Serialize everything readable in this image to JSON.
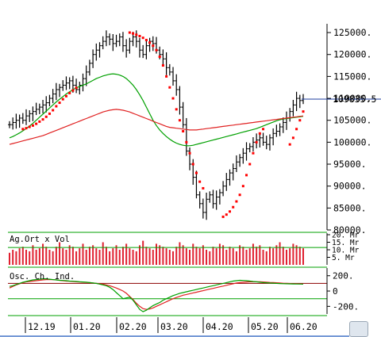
{
  "chart_data": [
    {
      "type": "candlestick",
      "panel": "price",
      "x_ticks": [
        "12.19",
        "01.20",
        "02.20",
        "03.20",
        "04.20",
        "05.20",
        "06.20"
      ],
      "y_ticks": [
        "125000.",
        "120000.",
        "115000.",
        "110000.",
        "105000.",
        "100000.",
        "95000.",
        "90000.",
        "85000.",
        "80000."
      ],
      "ylim": [
        80000,
        127000
      ],
      "last_value_label": "109835.5",
      "last_value": 109835.5,
      "colors": {
        "bars": "#000000",
        "sar": "#ff0000",
        "ma_short": "#00a000",
        "ma_long": "#e02020",
        "last_line": "#1f3f9f"
      },
      "series": [
        {
          "key": "close",
          "style": "bars",
          "values": [
            104000,
            104500,
            105000,
            105500,
            105000,
            106000,
            106500,
            107000,
            107500,
            108000,
            108500,
            109000,
            110000,
            111000,
            112000,
            112500,
            113000,
            113500,
            114000,
            113000,
            112000,
            113000,
            114500,
            116000,
            118000,
            120000,
            121000,
            122000,
            123000,
            124000,
            123500,
            122500,
            123000,
            124000,
            122000,
            121000,
            123000,
            124000,
            123000,
            121000,
            120000,
            122000,
            123000,
            122500,
            121000,
            120000,
            119000,
            117000,
            116000,
            114000,
            112000,
            108000,
            104000,
            98000,
            95000,
            92000,
            88000,
            86000,
            84000,
            87000,
            88000,
            86000,
            87500,
            88500,
            90000,
            91500,
            93000,
            94000,
            95500,
            96500,
            97500,
            98500,
            99000,
            100000,
            100500,
            101000,
            100000,
            99500,
            101000,
            102000,
            102500,
            103500,
            104500,
            105500,
            107000,
            108500,
            110000,
            109500,
            109835.5
          ]
        },
        {
          "key": "sar",
          "style": "dots",
          "values": [
            null,
            null,
            null,
            null,
            103000,
            103200,
            103500,
            103800,
            104200,
            104700,
            105200,
            105800,
            106500,
            107300,
            108200,
            109000,
            109800,
            110500,
            111200,
            111800,
            112400,
            null,
            null,
            null,
            null,
            null,
            null,
            null,
            null,
            null,
            null,
            null,
            null,
            null,
            null,
            null,
            125000,
            124800,
            124500,
            124200,
            123800,
            123300,
            122700,
            122000,
            121000,
            119500,
            117500,
            115000,
            112500,
            110000,
            107500,
            105000,
            102500,
            100000,
            97500,
            95000,
            93000,
            91000,
            89500,
            null,
            null,
            null,
            null,
            null,
            83000,
            83500,
            84200,
            85200,
            86500,
            88000,
            90000,
            92500,
            95000,
            97500,
            100000,
            102000,
            103000,
            null,
            null,
            null,
            null,
            null,
            null,
            null,
            99500,
            101000,
            103000,
            105000,
            107000
          ]
        },
        {
          "key": "ma_short",
          "style": "line",
          "values": [
            101000,
            101300,
            101700,
            102100,
            102600,
            103100,
            103700,
            104300,
            105000,
            105700,
            106400,
            107100,
            107800,
            108500,
            109200,
            109800,
            110400,
            111000,
            111500,
            112000,
            112400,
            112700,
            113000,
            113300,
            113700,
            114100,
            114500,
            114800,
            115100,
            115300,
            115500,
            115600,
            115500,
            115300,
            115000,
            114500,
            113800,
            113000,
            112000,
            110800,
            109500,
            108000,
            106500,
            105000,
            103800,
            102800,
            102000,
            101300,
            100700,
            100200,
            99800,
            99500,
            99300,
            99200,
            99200,
            99300,
            99500,
            99700,
            99900,
            100100,
            100300,
            100500,
            100700,
            100900,
            101100,
            101300,
            101500,
            101700,
            101900,
            102100,
            102300,
            102500,
            102700,
            102900,
            103100,
            103400,
            103700,
            104000,
            104300,
            104600,
            104900,
            105100,
            105300,
            105400,
            105500,
            105600,
            105700,
            105800,
            105900
          ]
        },
        {
          "key": "ma_long",
          "style": "line",
          "values": [
            99500,
            99700,
            99900,
            100100,
            100300,
            100500,
            100700,
            100900,
            101100,
            101300,
            101500,
            101800,
            102100,
            102400,
            102700,
            103000,
            103300,
            103600,
            103900,
            104200,
            104500,
            104800,
            105100,
            105400,
            105700,
            106000,
            106300,
            106600,
            106900,
            107100,
            107300,
            107400,
            107500,
            107400,
            107300,
            107100,
            106900,
            106600,
            106300,
            106000,
            105700,
            105400,
            105100,
            104800,
            104500,
            104200,
            103900,
            103600,
            103400,
            103300,
            103200,
            103100,
            103000,
            102900,
            102800,
            102800,
            102800,
            102900,
            103000,
            103100,
            103200,
            103300,
            103400,
            103500,
            103600,
            103700,
            103800,
            103900,
            104000,
            104100,
            104200,
            104300,
            104400,
            104500,
            104600,
            104700,
            104800,
            104900,
            105000,
            105100,
            105200,
            105300,
            105400,
            105500,
            105600,
            105700,
            105800,
            105900,
            106000
          ]
        }
      ]
    },
    {
      "type": "bar",
      "panel": "volume",
      "title": "Ag.Ort x Vol",
      "y_ticks": [
        "20. Mr",
        "15. Mr",
        "10. Mr",
        "5. Mr"
      ],
      "ylim": [
        0,
        20
      ],
      "colors": {
        "bars": "#e02030",
        "line": "#00a000"
      },
      "values": [
        8,
        10,
        9,
        11,
        12,
        10,
        9,
        13,
        10,
        11,
        14,
        12,
        10,
        9,
        12,
        15,
        11,
        10,
        13,
        12,
        9,
        11,
        14,
        10,
        12,
        13,
        11,
        10,
        15,
        12,
        9,
        11,
        13,
        10,
        12,
        14,
        11,
        10,
        9,
        13,
        16,
        12,
        11,
        10,
        14,
        13,
        12,
        11,
        10,
        9,
        12,
        15,
        13,
        11,
        10,
        14,
        12,
        11,
        13,
        10,
        9,
        12,
        11,
        14,
        13,
        10,
        12,
        11,
        9,
        13,
        12,
        10,
        11,
        14,
        12,
        13,
        10,
        9,
        12,
        11,
        13,
        15,
        12,
        10,
        11,
        14,
        13,
        12,
        11
      ],
      "average": 11.5
    },
    {
      "type": "line",
      "panel": "oscillator",
      "title": "Osc. Ch. Ind.",
      "y_ticks": [
        "200.",
        "0",
        "-200."
      ],
      "ylim": [
        -300,
        280
      ],
      "colors": {
        "line_a": "#e02020",
        "line_b": "#00a000",
        "ref": "#8b0000"
      },
      "series": [
        {
          "key": "osc_a",
          "values": [
            40,
            60,
            80,
            95,
            110,
            120,
            125,
            130,
            135,
            140,
            145,
            150,
            150,
            148,
            145,
            140,
            135,
            130,
            128,
            125,
            120,
            118,
            115,
            112,
            110,
            105,
            100,
            95,
            90,
            80,
            70,
            55,
            40,
            20,
            0,
            -30,
            -70,
            -110,
            -160,
            -200,
            -230,
            -240,
            -235,
            -220,
            -200,
            -180,
            -160,
            -140,
            -120,
            -100,
            -85,
            -70,
            -55,
            -45,
            -35,
            -25,
            -15,
            -5,
            5,
            15,
            25,
            35,
            45,
            55,
            65,
            75,
            85,
            95,
            105,
            110,
            115,
            118,
            120,
            122,
            121,
            120,
            118,
            115,
            112,
            110,
            108,
            105,
            102,
            100,
            98,
            96,
            95,
            94,
            93
          ]
        },
        {
          "key": "osc_b",
          "values": [
            60,
            70,
            85,
            100,
            115,
            125,
            135,
            145,
            150,
            155,
            160,
            160,
            155,
            150,
            145,
            140,
            138,
            135,
            130,
            128,
            125,
            120,
            118,
            115,
            110,
            105,
            100,
            90,
            80,
            70,
            50,
            20,
            -20,
            -60,
            -100,
            -90,
            -80,
            -120,
            -180,
            -240,
            -270,
            -250,
            -220,
            -190,
            -170,
            -150,
            -120,
            -100,
            -80,
            -60,
            -45,
            -30,
            -20,
            -10,
            0,
            10,
            20,
            30,
            40,
            50,
            60,
            70,
            80,
            90,
            100,
            110,
            120,
            130,
            135,
            140,
            138,
            135,
            130,
            125,
            120,
            115,
            110,
            108,
            105,
            103,
            100,
            98,
            96,
            95,
            94,
            93,
            92,
            91,
            90
          ]
        }
      ],
      "ref_levels": [
        100,
        -100
      ]
    }
  ]
}
